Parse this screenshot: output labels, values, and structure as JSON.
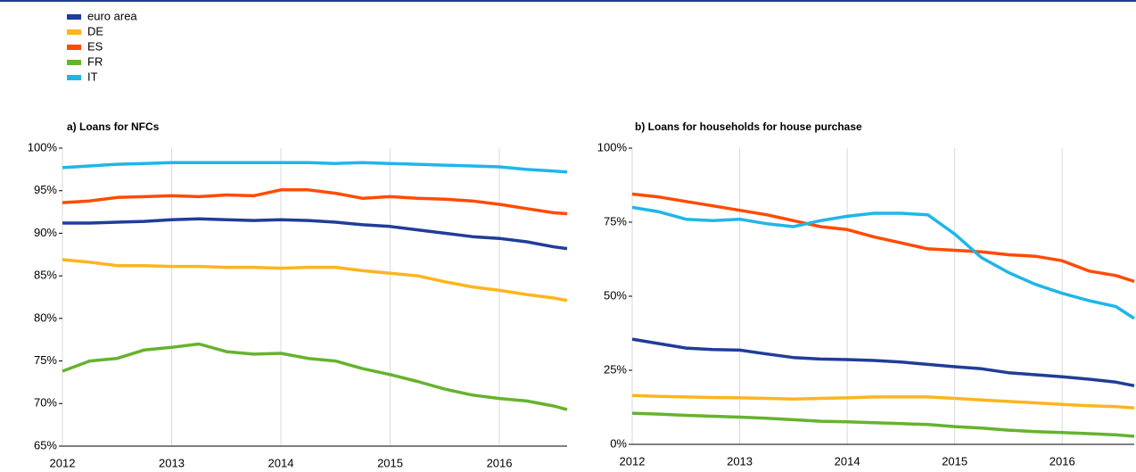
{
  "chart_data": [
    {
      "type": "line",
      "title": "a) Loans for NFCs",
      "x": [
        2012,
        2012.25,
        2012.5,
        2012.75,
        2013,
        2013.25,
        2013.5,
        2013.75,
        2014,
        2014.25,
        2014.5,
        2014.75,
        2015,
        2015.25,
        2015.5,
        2015.75,
        2016,
        2016.25,
        2016.5,
        2016.62
      ],
      "xlim": [
        2012,
        2016.62
      ],
      "xticks": [
        2012,
        2013,
        2014,
        2015,
        2016
      ],
      "ylim": [
        65,
        100
      ],
      "yticks": [
        {
          "value": 65,
          "label": "65%"
        },
        {
          "value": 70,
          "label": "70%"
        },
        {
          "value": 75,
          "label": "75%"
        },
        {
          "value": 80,
          "label": "80%"
        },
        {
          "value": 85,
          "label": "85%"
        },
        {
          "value": 90,
          "label": "90%"
        },
        {
          "value": 95,
          "label": "95%"
        },
        {
          "value": 100,
          "label": "100%"
        }
      ],
      "grid": true,
      "series": [
        {
          "name": "euro area",
          "color": "#1f3d99",
          "values": [
            91.2,
            91.2,
            91.3,
            91.4,
            91.6,
            91.7,
            91.6,
            91.5,
            91.6,
            91.5,
            91.3,
            91.0,
            90.8,
            90.4,
            90.0,
            89.6,
            89.4,
            89.0,
            88.4,
            88.2
          ]
        },
        {
          "name": "DE",
          "color": "#fbb51f",
          "values": [
            86.9,
            86.6,
            86.2,
            86.2,
            86.1,
            86.1,
            86.0,
            86.0,
            85.9,
            86.0,
            86.0,
            85.6,
            85.3,
            85.0,
            84.3,
            83.7,
            83.3,
            82.8,
            82.4,
            82.1
          ]
        },
        {
          "name": "ES",
          "color": "#ff4b00",
          "values": [
            93.6,
            93.8,
            94.2,
            94.3,
            94.4,
            94.3,
            94.5,
            94.4,
            95.1,
            95.1,
            94.7,
            94.1,
            94.3,
            94.1,
            94.0,
            93.8,
            93.4,
            92.9,
            92.4,
            92.3
          ]
        },
        {
          "name": "FR",
          "color": "#65b32e",
          "values": [
            73.8,
            75.0,
            75.3,
            76.3,
            76.6,
            77.0,
            76.1,
            75.8,
            75.9,
            75.3,
            75.0,
            74.1,
            73.4,
            72.6,
            71.7,
            71.0,
            70.6,
            70.3,
            69.7,
            69.3
          ]
        },
        {
          "name": "IT",
          "color": "#1fb6e8",
          "values": [
            97.7,
            97.9,
            98.1,
            98.2,
            98.3,
            98.3,
            98.3,
            98.3,
            98.3,
            98.3,
            98.2,
            98.3,
            98.2,
            98.1,
            98.0,
            97.9,
            97.8,
            97.5,
            97.3,
            97.2
          ]
        }
      ]
    },
    {
      "type": "line",
      "title": "b) Loans for households for house purchase",
      "x": [
        2012,
        2012.25,
        2012.5,
        2012.75,
        2013,
        2013.25,
        2013.5,
        2013.75,
        2014,
        2014.25,
        2014.5,
        2014.75,
        2015,
        2015.25,
        2015.5,
        2015.75,
        2016,
        2016.25,
        2016.5,
        2016.67
      ],
      "xlim": [
        2012,
        2016.67
      ],
      "xticks": [
        2012,
        2013,
        2014,
        2015,
        2016
      ],
      "ylim": [
        0,
        100
      ],
      "yticks": [
        {
          "value": 0,
          "label": "0%"
        },
        {
          "value": 25,
          "label": "25%"
        },
        {
          "value": 50,
          "label": "50%"
        },
        {
          "value": 75,
          "label": "75%"
        },
        {
          "value": 100,
          "label": "100%"
        }
      ],
      "grid": true,
      "series": [
        {
          "name": "euro area",
          "color": "#1f3d99",
          "values": [
            35.5,
            34,
            32.5,
            32,
            31.8,
            30.5,
            29.3,
            28.8,
            28.6,
            28.3,
            27.8,
            27.0,
            26.2,
            25.5,
            24.2,
            23.5,
            22.8,
            22.0,
            21.0,
            19.8
          ]
        },
        {
          "name": "DE",
          "color": "#fbb51f",
          "values": [
            16.5,
            16.2,
            16.0,
            15.8,
            15.7,
            15.5,
            15.3,
            15.5,
            15.7,
            16.0,
            16.0,
            16.0,
            15.5,
            15.0,
            14.5,
            14.0,
            13.5,
            13.0,
            12.7,
            12.3
          ]
        },
        {
          "name": "ES",
          "color": "#ff4b00",
          "values": [
            84.5,
            83.5,
            82,
            80.5,
            79,
            77.5,
            75.5,
            73.5,
            72.5,
            70,
            68,
            66,
            65.5,
            65,
            64,
            63.5,
            62,
            58.5,
            57,
            55
          ]
        },
        {
          "name": "FR",
          "color": "#65b32e",
          "values": [
            10.5,
            10.2,
            9.8,
            9.5,
            9.2,
            8.8,
            8.3,
            7.8,
            7.6,
            7.3,
            7.0,
            6.7,
            6.0,
            5.5,
            4.8,
            4.3,
            4.0,
            3.6,
            3.2,
            2.7
          ]
        },
        {
          "name": "IT",
          "color": "#1fb6e8",
          "values": [
            80,
            78.5,
            76,
            75.5,
            76,
            74.5,
            73.5,
            75.5,
            77,
            78,
            78,
            77.5,
            71,
            63,
            58,
            54,
            51,
            48.5,
            46.5,
            42.5
          ]
        }
      ]
    }
  ]
}
